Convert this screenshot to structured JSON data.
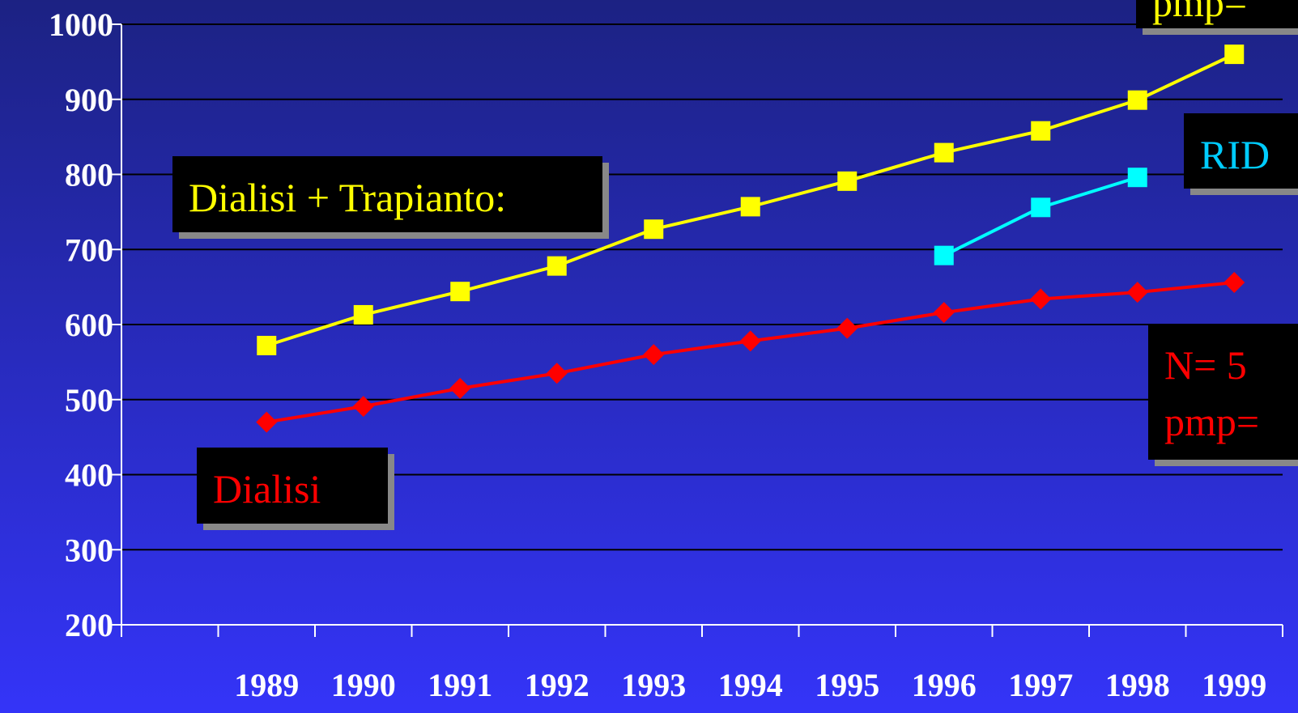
{
  "chart_data": {
    "type": "line",
    "categories": [
      null,
      "1989",
      "1990",
      "1991",
      "1992",
      "1993",
      "1994",
      "1995",
      "1996",
      "1997",
      "1998",
      "1999"
    ],
    "series": [
      {
        "color": "#ffff00",
        "marker": "square",
        "values": [
          null,
          572,
          613,
          644,
          678,
          727,
          757,
          791,
          829,
          858,
          899,
          960
        ]
      },
      {
        "color": "#00ffff",
        "marker": "square",
        "values": [
          null,
          null,
          null,
          null,
          null,
          null,
          null,
          null,
          692,
          756,
          796,
          null
        ]
      },
      {
        "color": "#ff0000",
        "marker": "diamond",
        "values": [
          null,
          470,
          491,
          515,
          535,
          560,
          578,
          595,
          616,
          634,
          643,
          656
        ]
      }
    ],
    "ylim": [
      200,
      1000
    ],
    "yticks": [
      200,
      300,
      400,
      500,
      600,
      700,
      800,
      900,
      1000
    ],
    "grid": true,
    "annotations": [
      {
        "lines": [
          "Dialisi + Trapianto:"
        ],
        "color": "#ffff00"
      },
      {
        "lines": [
          "Dialisi"
        ],
        "color": "#ff0000"
      },
      {
        "lines": [
          "RID"
        ],
        "color": "#00ccff"
      },
      {
        "lines": [
          "N= 5",
          "pmp="
        ],
        "color": "#ff0000"
      },
      {
        "lines": [
          "pmp="
        ],
        "color": "#ffff00"
      }
    ]
  }
}
